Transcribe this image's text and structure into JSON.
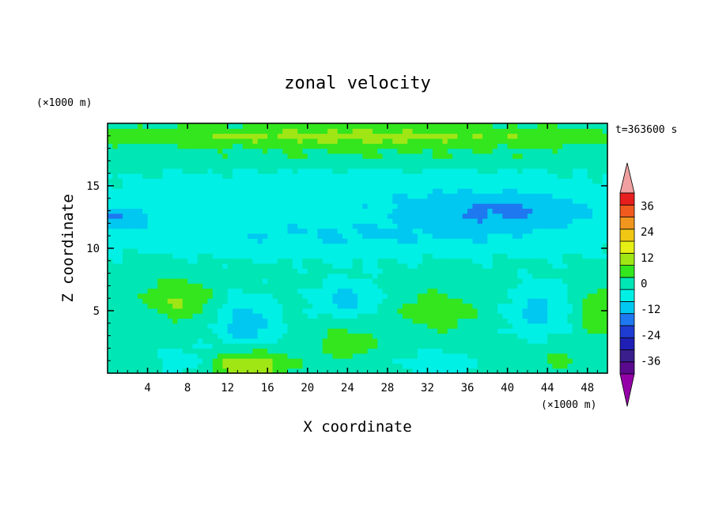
{
  "chart_data": {
    "type": "heatmap",
    "title": "zonal velocity",
    "xlabel": "X coordinate",
    "ylabel": "Z coordinate",
    "x_unit_label": "(×1000 m)",
    "y_unit_label": "(×1000 m)",
    "time_label": "t=363600 s",
    "xlim": [
      0,
      50
    ],
    "ylim": [
      0,
      20
    ],
    "x_ticks": [
      4,
      8,
      12,
      16,
      20,
      24,
      28,
      32,
      36,
      40,
      44,
      48
    ],
    "y_ticks": [
      5,
      10,
      15
    ],
    "colorbar": {
      "levels": [
        -42,
        -36,
        -30,
        -24,
        -18,
        -12,
        -6,
        0,
        6,
        12,
        18,
        24,
        30,
        36,
        42
      ],
      "colors": [
        "#5a0a8c",
        "#3a1e8c",
        "#1f1fb5",
        "#1e3cd2",
        "#1e78f0",
        "#00c8f0",
        "#00f0e6",
        "#00e6b4",
        "#33e61e",
        "#a0e614",
        "#e6f014",
        "#f0c814",
        "#f0961e",
        "#f05a1e",
        "#e61e1e"
      ],
      "under_color": "#9400a8",
      "over_color": "#f0a0a0",
      "tick_labels": [
        "-36",
        "-24",
        "-12",
        "0",
        "12",
        "24",
        "36"
      ],
      "tick_values": [
        -36,
        -24,
        -12,
        0,
        12,
        24,
        36
      ]
    },
    "features": [
      {
        "x": 25,
        "z": 19.0,
        "rx": 30,
        "rz": 0.9,
        "v": 12
      },
      {
        "x": 28,
        "z": 17.3,
        "rx": 28,
        "rz": 0.7,
        "v": 4
      },
      {
        "x": 25,
        "z": 14.5,
        "rx": 30,
        "rz": 2.0,
        "v": -6
      },
      {
        "x": 40,
        "z": 13.0,
        "rx": 9,
        "rz": 1.4,
        "v": -11
      },
      {
        "x": 1,
        "z": 12.5,
        "rx": 3,
        "rz": 1.0,
        "v": -11
      },
      {
        "x": 25,
        "z": 11.0,
        "rx": 28,
        "rz": 1.8,
        "v": -8
      },
      {
        "x": 7,
        "z": 6.0,
        "rx": 3.5,
        "rz": 1.8,
        "v": 10
      },
      {
        "x": 14,
        "z": 4.0,
        "rx": 3,
        "rz": 2.0,
        "v": -12
      },
      {
        "x": 24,
        "z": 6.0,
        "rx": 3,
        "rz": 1.5,
        "v": -10
      },
      {
        "x": 33,
        "z": 5.0,
        "rx": 4,
        "rz": 2.0,
        "v": 8
      },
      {
        "x": 43,
        "z": 5.0,
        "rx": 3,
        "rz": 2.0,
        "v": -10
      },
      {
        "x": 49,
        "z": 5.0,
        "rx": 2,
        "rz": 2.0,
        "v": 9
      },
      {
        "x": 14,
        "z": 0.7,
        "rx": 4,
        "rz": 1.2,
        "v": 16
      },
      {
        "x": 24,
        "z": 2.5,
        "rx": 3,
        "rz": 1.4,
        "v": 8
      },
      {
        "x": 33,
        "z": 0.8,
        "rx": 3,
        "rz": 1.0,
        "v": -8
      },
      {
        "x": 8,
        "z": 1.0,
        "rx": 3,
        "rz": 1.2,
        "v": -6
      },
      {
        "x": 45,
        "z": 1.0,
        "rx": 3,
        "rz": 1.2,
        "v": 5
      }
    ]
  }
}
